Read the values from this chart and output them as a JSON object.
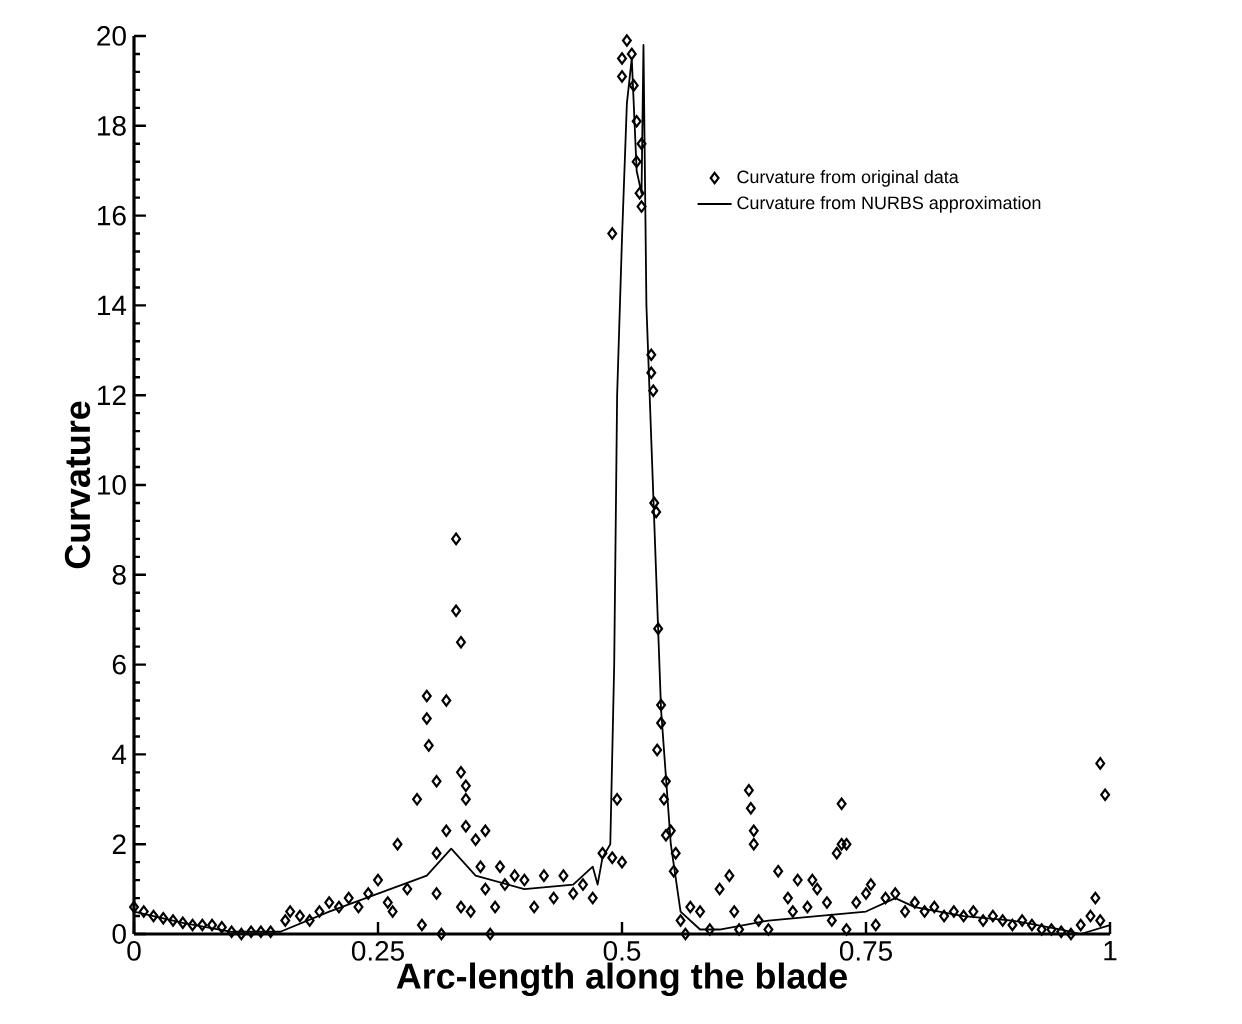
{
  "chart_data": {
    "type": "scatter",
    "xlabel": "Arc-length along the blade",
    "ylabel": "Curvature",
    "xlim": [
      0,
      1
    ],
    "ylim": [
      0,
      20
    ],
    "xticks": [
      0,
      0.25,
      0.5,
      0.75,
      1
    ],
    "yticks": [
      0,
      2,
      4,
      6,
      8,
      10,
      12,
      14,
      16,
      18,
      20
    ],
    "legend": "top right",
    "grid": false,
    "series": [
      {
        "name": "Curvature from original data",
        "marker": "diamond",
        "color": "#000000",
        "x": [
          0.0,
          0.01,
          0.02,
          0.03,
          0.04,
          0.05,
          0.06,
          0.07,
          0.08,
          0.09,
          0.1,
          0.11,
          0.12,
          0.13,
          0.14,
          0.155,
          0.16,
          0.17,
          0.18,
          0.19,
          0.2,
          0.21,
          0.22,
          0.23,
          0.24,
          0.25,
          0.26,
          0.265,
          0.27,
          0.28,
          0.29,
          0.295,
          0.3,
          0.3,
          0.302,
          0.31,
          0.31,
          0.31,
          0.315,
          0.32,
          0.32,
          0.33,
          0.33,
          0.335,
          0.335,
          0.34,
          0.34,
          0.34,
          0.335,
          0.345,
          0.35,
          0.355,
          0.36,
          0.36,
          0.365,
          0.37,
          0.375,
          0.38,
          0.39,
          0.4,
          0.41,
          0.42,
          0.43,
          0.44,
          0.45,
          0.46,
          0.47,
          0.48,
          0.49,
          0.5,
          0.495,
          0.49,
          0.5,
          0.5,
          0.505,
          0.51,
          0.512,
          0.515,
          0.515,
          0.518,
          0.52,
          0.52,
          0.53,
          0.53,
          0.532,
          0.533,
          0.535,
          0.537,
          0.54,
          0.54,
          0.536,
          0.545,
          0.543,
          0.545,
          0.55,
          0.555,
          0.553,
          0.56,
          0.565,
          0.57,
          0.58,
          0.59,
          0.6,
          0.61,
          0.615,
          0.62,
          0.63,
          0.632,
          0.635,
          0.635,
          0.64,
          0.65,
          0.66,
          0.67,
          0.675,
          0.68,
          0.69,
          0.695,
          0.7,
          0.71,
          0.715,
          0.72,
          0.725,
          0.725,
          0.73,
          0.73,
          0.74,
          0.75,
          0.755,
          0.76,
          0.77,
          0.78,
          0.79,
          0.8,
          0.81,
          0.82,
          0.83,
          0.84,
          0.85,
          0.86,
          0.87,
          0.88,
          0.89,
          0.9,
          0.91,
          0.92,
          0.93,
          0.94,
          0.95,
          0.96,
          0.97,
          0.98,
          0.985,
          0.99,
          0.995,
          0.99
        ],
        "values": [
          0.6,
          0.5,
          0.4,
          0.35,
          0.3,
          0.25,
          0.2,
          0.2,
          0.2,
          0.15,
          0.05,
          0.0,
          0.05,
          0.05,
          0.05,
          0.3,
          0.5,
          0.4,
          0.3,
          0.5,
          0.7,
          0.6,
          0.8,
          0.6,
          0.9,
          1.2,
          0.7,
          0.5,
          2.0,
          1.0,
          3.0,
          0.2,
          4.8,
          5.3,
          4.2,
          3.4,
          1.8,
          0.9,
          0.0,
          5.2,
          2.3,
          8.8,
          7.2,
          6.5,
          3.6,
          3.3,
          3.0,
          2.4,
          0.6,
          0.5,
          2.1,
          1.5,
          2.3,
          1.0,
          0.0,
          0.6,
          1.5,
          1.1,
          1.3,
          1.2,
          0.6,
          1.3,
          0.8,
          1.3,
          0.9,
          1.1,
          0.8,
          1.8,
          1.7,
          1.6,
          3.0,
          15.6,
          19.5,
          19.1,
          19.9,
          19.6,
          18.9,
          18.1,
          17.2,
          16.5,
          16.2,
          17.6,
          12.9,
          12.5,
          12.1,
          9.6,
          9.4,
          6.8,
          5.1,
          4.7,
          4.1,
          3.4,
          3.0,
          2.2,
          2.3,
          1.8,
          1.4,
          0.3,
          0.0,
          0.6,
          0.5,
          0.1,
          1.0,
          1.3,
          0.5,
          0.1,
          3.2,
          2.8,
          2.3,
          2.0,
          0.3,
          0.1,
          1.4,
          0.8,
          0.5,
          1.2,
          0.6,
          1.2,
          1.0,
          0.7,
          0.3,
          1.8,
          2.0,
          2.9,
          2.0,
          0.1,
          0.7,
          0.9,
          1.1,
          0.2,
          0.8,
          0.9,
          0.5,
          0.7,
          0.5,
          0.6,
          0.4,
          0.5,
          0.4,
          0.5,
          0.3,
          0.4,
          0.3,
          0.2,
          0.3,
          0.2,
          0.1,
          0.1,
          0.05,
          0.0,
          0.2,
          0.4,
          0.8,
          3.8,
          3.1,
          0.3
        ]
      },
      {
        "name": "Curvature from NURBS approximation",
        "type": "line",
        "marker": "none",
        "line_style": "solid",
        "color": "#000000",
        "x": [
          0,
          0.05,
          0.1,
          0.15,
          0.2,
          0.25,
          0.3,
          0.325,
          0.35,
          0.4,
          0.45,
          0.47,
          0.475,
          0.48,
          0.488,
          0.492,
          0.495,
          0.5,
          0.505,
          0.51,
          0.515,
          0.52,
          0.522,
          0.525,
          0.53,
          0.54,
          0.55,
          0.56,
          0.58,
          0.6,
          0.65,
          0.7,
          0.75,
          0.78,
          0.8,
          0.85,
          0.9,
          0.95,
          0.97,
          1.0
        ],
        "values": [
          0.5,
          0.25,
          0.05,
          0.05,
          0.5,
          0.9,
          1.3,
          1.9,
          1.3,
          1.0,
          1.1,
          1.5,
          1.1,
          1.7,
          2.0,
          6,
          12,
          15.5,
          18.5,
          19.5,
          17,
          16.5,
          19.8,
          14,
          11,
          5,
          2,
          0.5,
          0.1,
          0.1,
          0.3,
          0.4,
          0.5,
          0.8,
          0.6,
          0.4,
          0.3,
          0.1,
          0.0,
          0.2
        ]
      }
    ]
  }
}
